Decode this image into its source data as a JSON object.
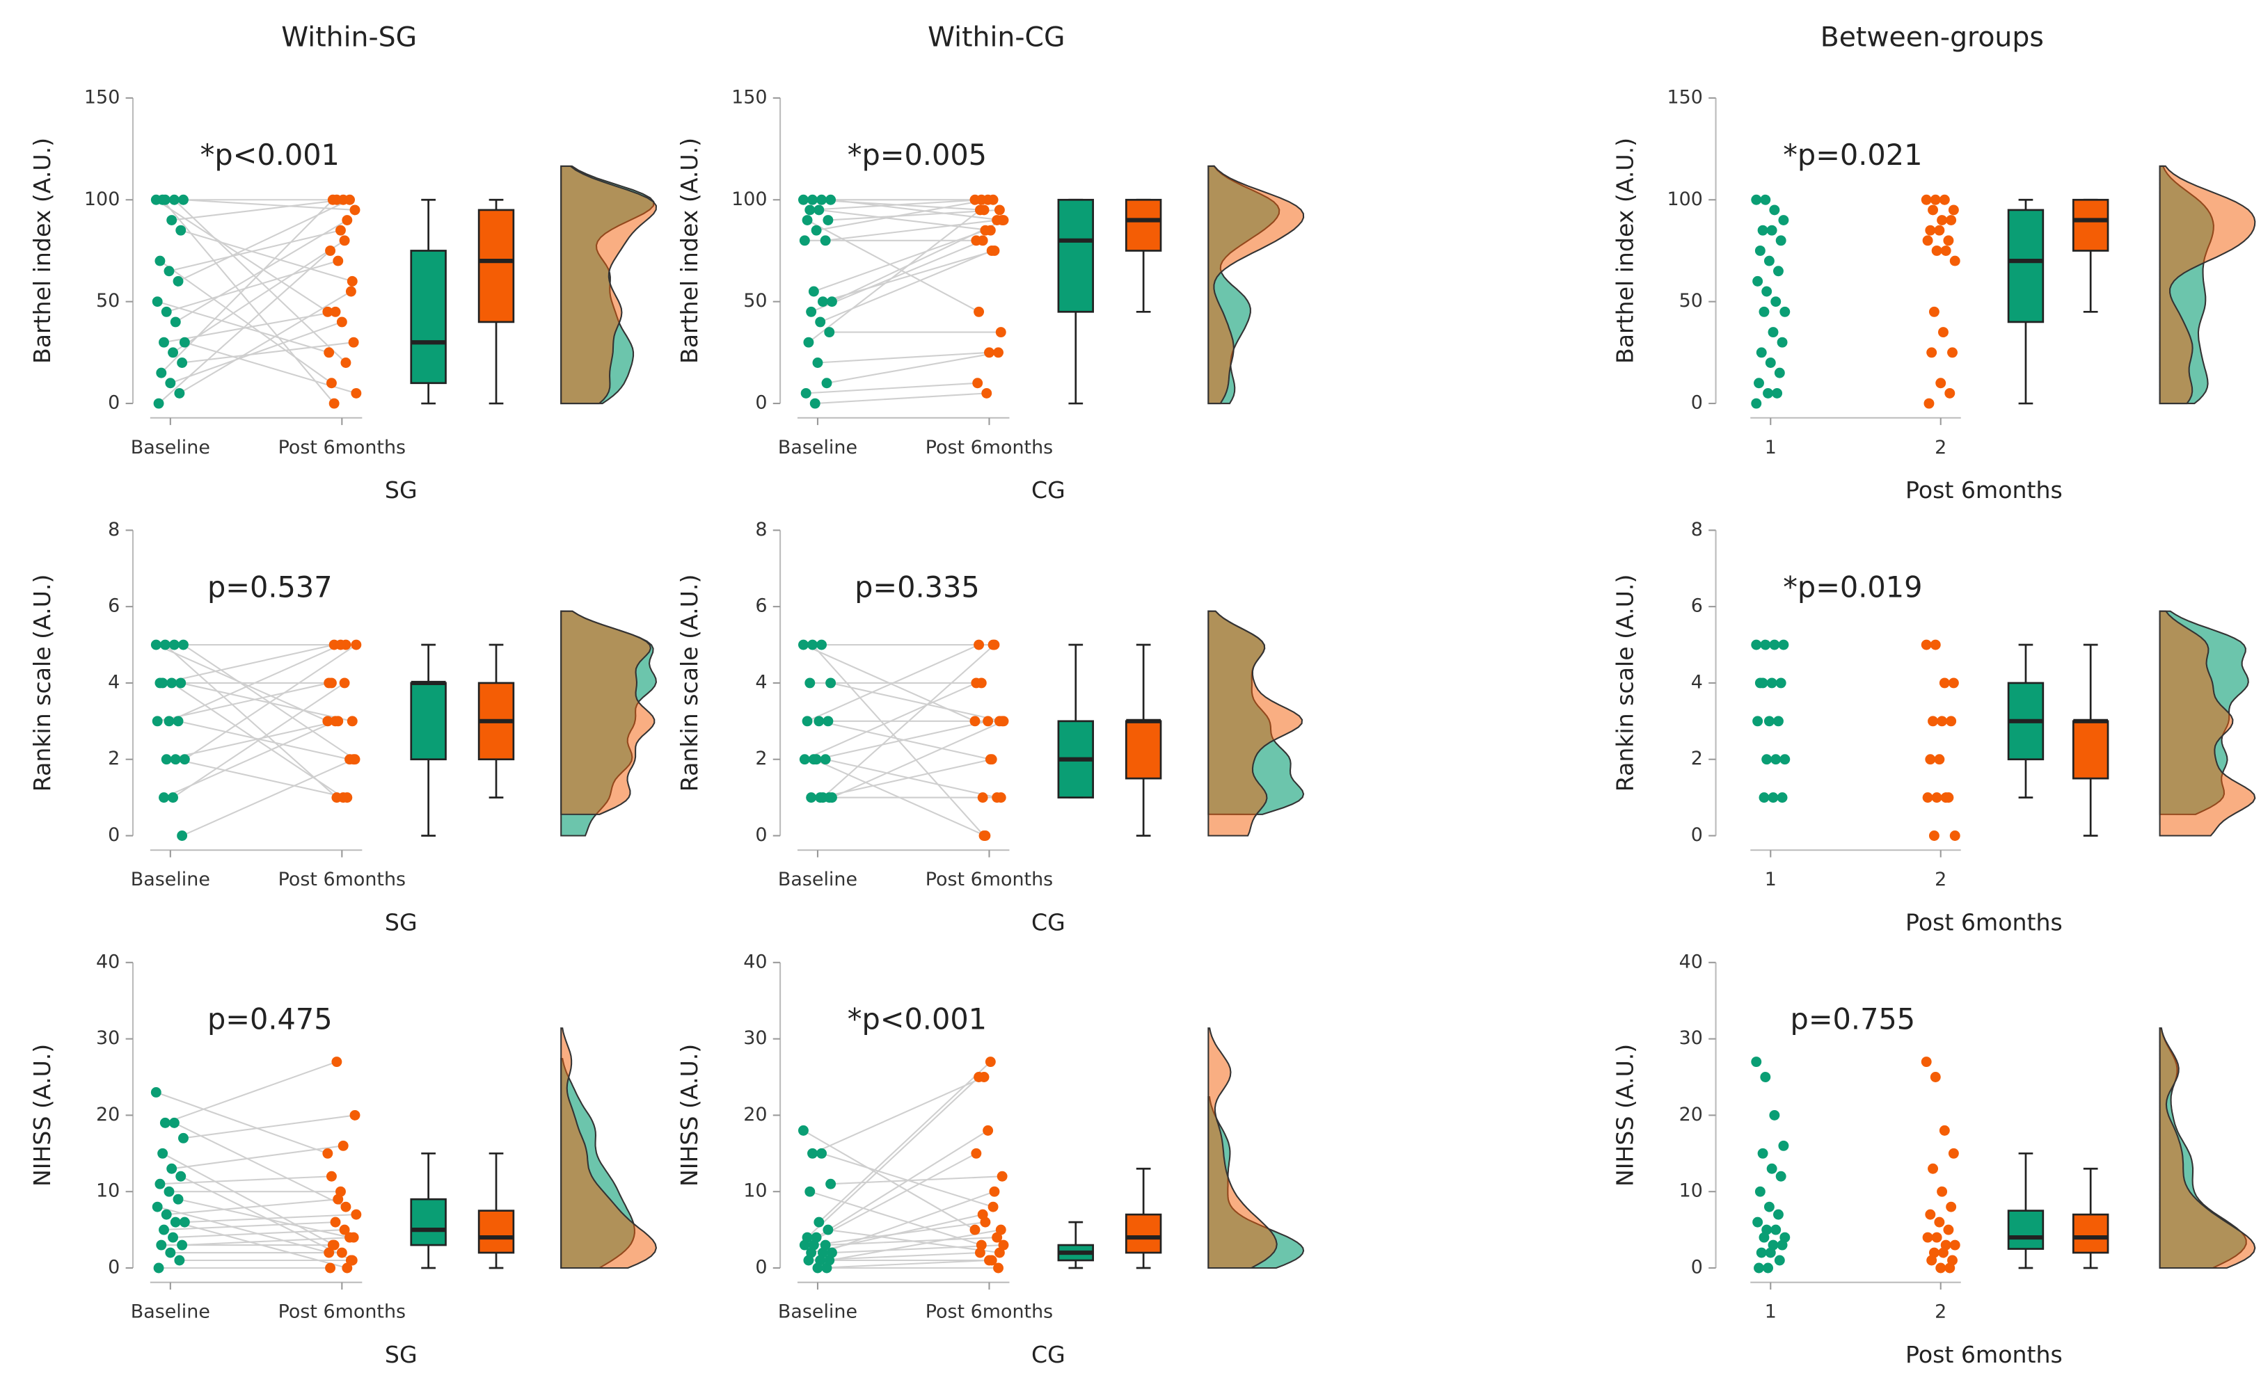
{
  "chart_data": [
    {
      "type": "raincloud",
      "title": "Within-SG",
      "ylabel": "Barthel index (A.U.)",
      "xlabel": "SG",
      "annotation": "*p<0.001",
      "paired": true,
      "categories": [
        "Baseline",
        "Post 6months"
      ],
      "ylim": [
        0,
        150
      ],
      "yticks": [
        0,
        50,
        100,
        150
      ],
      "groups": [
        {
          "color": "#0a9e74",
          "points": [
            100,
            100,
            100,
            100,
            100,
            90,
            85,
            70,
            65,
            60,
            50,
            45,
            40,
            30,
            30,
            25,
            20,
            15,
            10,
            5,
            0
          ],
          "box": {
            "min": 0,
            "q1": 10,
            "median": 30,
            "q3": 75,
            "max": 100
          }
        },
        {
          "color": "#f45d05",
          "points": [
            45,
            100,
            20,
            95,
            0,
            100,
            60,
            10,
            85,
            100,
            25,
            70,
            90,
            5,
            45,
            80,
            30,
            100,
            40,
            55,
            75
          ],
          "box": {
            "min": 0,
            "q1": 40,
            "median": 70,
            "q3": 95,
            "max": 100
          }
        }
      ]
    },
    {
      "type": "raincloud",
      "title": "Within-CG",
      "ylabel": "Barthel index (A.U.)",
      "xlabel": "CG",
      "annotation": "*p=0.005",
      "paired": true,
      "categories": [
        "Baseline",
        "Post 6months"
      ],
      "ylim": [
        0,
        150
      ],
      "yticks": [
        0,
        50,
        100,
        150
      ],
      "groups": [
        {
          "color": "#0a9e74",
          "points": [
            100,
            100,
            100,
            100,
            95,
            95,
            90,
            90,
            85,
            80,
            80,
            55,
            50,
            50,
            45,
            40,
            35,
            30,
            20,
            10,
            5,
            0
          ],
          "box": {
            "min": 0,
            "q1": 45,
            "median": 80,
            "q3": 100,
            "max": 100
          }
        },
        {
          "color": "#f45d05",
          "points": [
            100,
            95,
            100,
            90,
            100,
            85,
            95,
            45,
            100,
            90,
            80,
            85,
            75,
            90,
            80,
            75,
            35,
            95,
            25,
            25,
            10,
            5
          ],
          "box": {
            "min": 45,
            "q1": 75,
            "median": 90,
            "q3": 100,
            "max": 100
          }
        }
      ]
    },
    {
      "type": "raincloud",
      "title": "Between-groups",
      "ylabel": "Barthel index (A.U.)",
      "xlabel": "Post 6months",
      "annotation": "*p=0.021",
      "paired": false,
      "categories": [
        "1",
        "2"
      ],
      "ylim": [
        0,
        150
      ],
      "yticks": [
        0,
        50,
        100,
        150
      ],
      "groups": [
        {
          "color": "#0a9e74",
          "points": [
            100,
            100,
            95,
            90,
            85,
            85,
            80,
            75,
            70,
            65,
            60,
            55,
            50,
            45,
            45,
            35,
            30,
            25,
            20,
            15,
            10,
            5,
            5,
            0
          ],
          "box": {
            "min": 0,
            "q1": 40,
            "median": 70,
            "q3": 95,
            "max": 100
          }
        },
        {
          "color": "#f45d05",
          "points": [
            100,
            100,
            100,
            95,
            95,
            90,
            90,
            85,
            85,
            80,
            80,
            75,
            75,
            70,
            45,
            35,
            25,
            25,
            10,
            5,
            0
          ],
          "box": {
            "min": 45,
            "q1": 75,
            "median": 90,
            "q3": 100,
            "max": 100
          }
        }
      ]
    },
    {
      "type": "raincloud",
      "ylabel": "Rankin scale (A.U.)",
      "xlabel": "SG",
      "annotation": "p=0.537",
      "paired": true,
      "categories": [
        "Baseline",
        "Post 6months"
      ],
      "ylim": [
        0,
        8
      ],
      "yticks": [
        0,
        2,
        4,
        6,
        8
      ],
      "groups": [
        {
          "color": "#0a9e74",
          "points": [
            5,
            5,
            5,
            5,
            4,
            4,
            4,
            4,
            3,
            3,
            3,
            2,
            2,
            2,
            1,
            1,
            0
          ],
          "box": {
            "min": 0,
            "q1": 2,
            "median": 4,
            "q3": 4,
            "max": 5
          }
        },
        {
          "color": "#f45d05",
          "points": [
            3,
            1,
            5,
            2,
            5,
            1,
            3,
            4,
            5,
            2,
            4,
            3,
            1,
            5,
            3,
            4,
            2
          ],
          "box": {
            "min": 1,
            "q1": 2,
            "median": 3,
            "q3": 4,
            "max": 5
          }
        }
      ]
    },
    {
      "type": "raincloud",
      "ylabel": "Rankin scale (A.U.)",
      "xlabel": "CG",
      "annotation": "p=0.335",
      "paired": true,
      "categories": [
        "Baseline",
        "Post 6months"
      ],
      "ylim": [
        0,
        8
      ],
      "yticks": [
        0,
        2,
        4,
        6,
        8
      ],
      "groups": [
        {
          "color": "#0a9e74",
          "points": [
            5,
            5,
            5,
            4,
            4,
            3,
            3,
            3,
            2,
            2,
            2,
            2,
            1,
            1,
            1,
            1,
            1
          ],
          "box": {
            "min": 1,
            "q1": 1,
            "median": 2,
            "q3": 3,
            "max": 5
          }
        },
        {
          "color": "#f45d05",
          "points": [
            3,
            0,
            5,
            3,
            4,
            2,
            3,
            5,
            3,
            1,
            4,
            0,
            5,
            3,
            1,
            2,
            1
          ],
          "box": {
            "min": 0,
            "q1": 1.5,
            "median": 3,
            "q3": 3,
            "max": 5
          }
        }
      ]
    },
    {
      "type": "raincloud",
      "ylabel": "Rankin scale (A.U.)",
      "xlabel": "Post 6months",
      "annotation": "*p=0.019",
      "paired": false,
      "categories": [
        "1",
        "2"
      ],
      "ylim": [
        0,
        8
      ],
      "yticks": [
        0,
        2,
        4,
        6,
        8
      ],
      "groups": [
        {
          "color": "#0a9e74",
          "points": [
            5,
            5,
            5,
            5,
            4,
            4,
            4,
            4,
            3,
            3,
            3,
            2,
            2,
            2,
            1,
            1,
            1
          ],
          "box": {
            "min": 1,
            "q1": 2,
            "median": 3,
            "q3": 4,
            "max": 5
          }
        },
        {
          "color": "#f45d05",
          "points": [
            5,
            5,
            4,
            4,
            3,
            3,
            3,
            2,
            2,
            1,
            1,
            1,
            1,
            0,
            0
          ],
          "box": {
            "min": 0,
            "q1": 1.5,
            "median": 3,
            "q3": 3,
            "max": 5
          }
        }
      ]
    },
    {
      "type": "raincloud",
      "ylabel": "NIHSS (A.U.)",
      "xlabel": "SG",
      "annotation": "p=0.475",
      "paired": true,
      "categories": [
        "Baseline",
        "Post 6months"
      ],
      "ylim": [
        0,
        40
      ],
      "yticks": [
        0,
        10,
        20,
        30,
        40
      ],
      "groups": [
        {
          "color": "#0a9e74",
          "points": [
            23,
            19,
            19,
            17,
            15,
            13,
            12,
            11,
            10,
            9,
            8,
            7,
            6,
            6,
            5,
            4,
            3,
            3,
            2,
            1,
            0
          ],
          "box": {
            "min": 0,
            "q1": 3,
            "median": 5,
            "q3": 9,
            "max": 15
          }
        },
        {
          "color": "#f45d05",
          "points": [
            15,
            27,
            8,
            20,
            3,
            16,
            1,
            12,
            10,
            4,
            2,
            9,
            0,
            7,
            6,
            5,
            4,
            3,
            2,
            1,
            0
          ],
          "box": {
            "min": 0,
            "q1": 2,
            "median": 4,
            "q3": 7.5,
            "max": 15
          }
        }
      ]
    },
    {
      "type": "raincloud",
      "ylabel": "NIHSS (A.U.)",
      "xlabel": "CG",
      "annotation": "*p<0.001",
      "paired": true,
      "categories": [
        "Baseline",
        "Post 6months"
      ],
      "ylim": [
        0,
        40
      ],
      "yticks": [
        0,
        10,
        20,
        30,
        40
      ],
      "groups": [
        {
          "color": "#0a9e74",
          "points": [
            18,
            15,
            15,
            11,
            10,
            6,
            5,
            4,
            4,
            3,
            3,
            3,
            2,
            2,
            2,
            1,
            1,
            1,
            0,
            0
          ],
          "box": {
            "min": 0,
            "q1": 1,
            "median": 2,
            "q3": 3,
            "max": 6
          }
        },
        {
          "color": "#f45d05",
          "points": [
            5,
            25,
            8,
            12,
            3,
            27,
            2,
            25,
            18,
            4,
            15,
            6,
            10,
            3,
            7,
            1,
            5,
            2,
            1,
            0
          ],
          "box": {
            "min": 0,
            "q1": 2,
            "median": 4,
            "q3": 7,
            "max": 13
          }
        }
      ]
    },
    {
      "type": "raincloud",
      "ylabel": "NIHSS (A.U.)",
      "xlabel": "Post 6months",
      "annotation": "p=0.755",
      "paired": false,
      "categories": [
        "1",
        "2"
      ],
      "ylim": [
        0,
        40
      ],
      "yticks": [
        0,
        10,
        20,
        30,
        40
      ],
      "groups": [
        {
          "color": "#0a9e74",
          "points": [
            27,
            25,
            20,
            16,
            15,
            13,
            12,
            10,
            8,
            7,
            6,
            5,
            5,
            4,
            4,
            3,
            3,
            2,
            2,
            1,
            0,
            0
          ],
          "box": {
            "min": 0,
            "q1": 2.5,
            "median": 4,
            "q3": 7.5,
            "max": 15
          }
        },
        {
          "color": "#f45d05",
          "points": [
            27,
            25,
            18,
            15,
            13,
            10,
            8,
            7,
            6,
            5,
            4,
            4,
            3,
            3,
            2,
            2,
            1,
            1,
            0,
            0
          ],
          "box": {
            "min": 0,
            "q1": 2,
            "median": 4,
            "q3": 7,
            "max": 13
          }
        }
      ]
    }
  ]
}
